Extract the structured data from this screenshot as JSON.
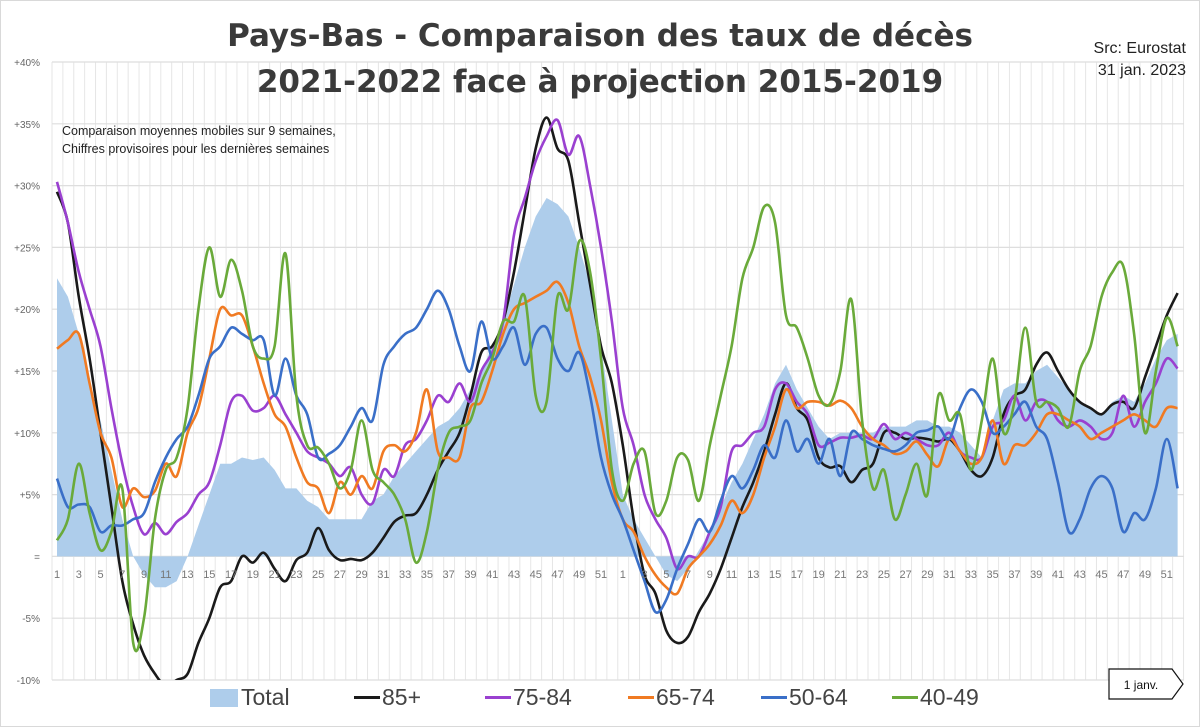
{
  "chart_data": {
    "type": "area+line",
    "title": [
      "Pays-Bas - Comparaison des taux de décès",
      "2021-2022 face à projection 2015-2019"
    ],
    "source": [
      "Src: Eurostat",
      "31 jan. 2023"
    ],
    "annotation": [
      "Comparaison moyennes mobiles sur 9 semaines,",
      "Chiffres provisoires pour les dernières semaines"
    ],
    "marker_label": "1 janv.",
    "ylim": [
      -10,
      40
    ],
    "yticks": [
      {
        "v": 40,
        "label": "+40%"
      },
      {
        "v": 35,
        "label": "+35%"
      },
      {
        "v": 30,
        "label": "+30%"
      },
      {
        "v": 25,
        "label": "+25%"
      },
      {
        "v": 20,
        "label": "+20%"
      },
      {
        "v": 15,
        "label": "+15%"
      },
      {
        "v": 10,
        "label": "+10%"
      },
      {
        "v": 5,
        "label": "+5%"
      },
      {
        "v": 0,
        "label": "="
      },
      {
        "v": -5,
        "label": "-5%"
      },
      {
        "v": -10,
        "label": "-10%"
      }
    ],
    "grid": true,
    "legend_position": "bottom",
    "x_weeks": [
      1,
      2,
      3,
      4,
      5,
      6,
      7,
      8,
      9,
      10,
      11,
      12,
      13,
      14,
      15,
      16,
      17,
      18,
      19,
      20,
      21,
      22,
      23,
      24,
      25,
      26,
      27,
      28,
      29,
      30,
      31,
      32,
      33,
      34,
      35,
      36,
      37,
      38,
      39,
      40,
      41,
      42,
      43,
      44,
      45,
      46,
      47,
      48,
      49,
      50,
      51,
      52,
      1,
      2,
      3,
      4,
      5,
      6,
      7,
      8,
      9,
      10,
      11,
      12,
      13,
      14,
      15,
      16,
      17,
      18,
      19,
      20,
      21,
      22,
      23,
      24,
      25,
      26,
      27,
      28,
      29,
      30,
      31,
      32,
      33,
      34,
      35,
      36,
      37,
      38,
      39,
      40,
      41,
      42,
      43,
      44,
      45,
      46,
      47,
      48,
      49,
      50,
      51,
      52
    ],
    "series": [
      {
        "name": "Total",
        "kind": "area",
        "color": "#aecdeb",
        "values": [
          22.5,
          21,
          18,
          14,
          11,
          7,
          3,
          0,
          -1.5,
          -2.5,
          -2.5,
          -2,
          0,
          2.5,
          5,
          7.5,
          7.5,
          8,
          7.8,
          8,
          7,
          5.5,
          5.5,
          4.5,
          4,
          3,
          3,
          3,
          3,
          4.5,
          5,
          6.5,
          7.5,
          8.5,
          9.5,
          10.5,
          11,
          12,
          13.5,
          15,
          17,
          19,
          22,
          25,
          27.5,
          29,
          28.5,
          27.5,
          25,
          22,
          17,
          11,
          5,
          3,
          1.5,
          0,
          -1.5,
          -2,
          -1,
          0.5,
          2,
          4,
          6,
          7.5,
          9.5,
          11.5,
          14,
          15.5,
          13.5,
          12,
          10.5,
          9.5,
          10,
          10,
          10,
          10,
          10.5,
          10.5,
          10.5,
          11,
          11,
          10.5,
          10.5,
          10,
          9,
          8,
          11,
          13.5,
          14,
          14,
          15,
          15.5,
          14.5,
          13.5,
          12.5,
          12,
          11.5,
          12.5,
          13,
          12.5,
          14,
          16,
          17.5,
          18
        ]
      },
      {
        "name": "85+",
        "kind": "line",
        "color": "#1a1a1a",
        "values": [
          29.5,
          27,
          21,
          16,
          10,
          4,
          -2,
          -5.5,
          -8,
          -9.5,
          -10.5,
          -10,
          -9.5,
          -7,
          -5,
          -2.5,
          -2,
          0,
          -0.5,
          0.3,
          -1,
          -2,
          -0.3,
          0.3,
          2.3,
          0.5,
          -0.3,
          -0.2,
          -0.3,
          0.3,
          1.5,
          2.8,
          3.3,
          3.5,
          5,
          7,
          8.5,
          10,
          13,
          16.5,
          17,
          19,
          23,
          28,
          33,
          35.5,
          33,
          32,
          27,
          22,
          17,
          14,
          9,
          3,
          -1.5,
          -3,
          -6,
          -7,
          -6.5,
          -4.5,
          -3,
          -1,
          1.5,
          4,
          6,
          8.5,
          11.5,
          14,
          12,
          11,
          8,
          7.2,
          7.3,
          6,
          7,
          7.5,
          10,
          10,
          9.5,
          9.6,
          9.5,
          9.3,
          9.5,
          8.5,
          7,
          6.5,
          8,
          11.5,
          13,
          13.5,
          15.5,
          16.5,
          15,
          13.5,
          12.5,
          12,
          11.5,
          12.3,
          12.5,
          12,
          14.5,
          17,
          19.5,
          21.3
        ]
      },
      {
        "name": "75-84",
        "kind": "line",
        "color": "#9a40d0",
        "values": [
          30.3,
          27,
          23,
          20,
          17,
          12,
          7.5,
          4,
          1.8,
          2.7,
          1.8,
          2.8,
          3.5,
          5,
          6,
          9,
          12.5,
          13,
          11.8,
          12,
          13,
          11.5,
          10,
          8.5,
          8,
          7.5,
          6.5,
          7.2,
          5,
          4.3,
          7,
          6.5,
          9,
          9.5,
          11,
          13,
          12.5,
          14,
          12.5,
          15,
          16.5,
          19,
          26,
          29,
          32,
          34,
          35.3,
          32.5,
          34,
          30,
          25,
          19,
          12,
          9,
          5,
          3,
          1.5,
          -1,
          0,
          0,
          2,
          4,
          8.5,
          9,
          10,
          10.5,
          13.5,
          14,
          12.5,
          11.5,
          9,
          9.2,
          9.6,
          9.6,
          9.8,
          9.5,
          10.7,
          9.5,
          10,
          9.5,
          9,
          9,
          10,
          8.5,
          8,
          8,
          10.5,
          11,
          13,
          11,
          12.5,
          12.5,
          11,
          10.5,
          11,
          10.5,
          9.5,
          10,
          13,
          10.5,
          12.5,
          14,
          16,
          15.2
        ]
      },
      {
        "name": "65-74",
        "kind": "line",
        "color": "#f07a22",
        "values": [
          16.8,
          17.5,
          18,
          14,
          10,
          8,
          4,
          5.5,
          4.8,
          5.3,
          7.5,
          6.5,
          10,
          12,
          16,
          20,
          19.5,
          19.5,
          17,
          14,
          11.5,
          10.5,
          8,
          6,
          5.5,
          3.5,
          6,
          5,
          6.5,
          5.5,
          8.5,
          9,
          8.5,
          10,
          13.5,
          8.5,
          8,
          8,
          12,
          12.5,
          15,
          18,
          20,
          20.5,
          21,
          21.5,
          22.2,
          20.5,
          17,
          14.5,
          11,
          6,
          3,
          2,
          0,
          -1.5,
          -2.5,
          -3,
          -1,
          0,
          1,
          2.5,
          4.5,
          3.5,
          5,
          8,
          10.5,
          13.5,
          12,
          12.5,
          12.5,
          12.2,
          12.6,
          12,
          10.5,
          9.5,
          9,
          8.3,
          8.5,
          9.3,
          8.2,
          7.3,
          9.5,
          8.5,
          7.5,
          8,
          11,
          7.5,
          9,
          9,
          10,
          11.5,
          11.5,
          11,
          10.5,
          9.5,
          10,
          10.5,
          11,
          11.5,
          11,
          10.5,
          12,
          12
        ]
      },
      {
        "name": "50-64",
        "kind": "line",
        "color": "#3a6fc8",
        "values": [
          6.3,
          4,
          4.2,
          4,
          2,
          2.5,
          2.5,
          3,
          3.5,
          6,
          8,
          9.5,
          10.5,
          13,
          16,
          17,
          18.5,
          18,
          17.5,
          17.5,
          13,
          16,
          13,
          11.5,
          8,
          8.3,
          9,
          10.5,
          12,
          11,
          15.5,
          17,
          18,
          18.5,
          20,
          21.5,
          20,
          17,
          15,
          19,
          16,
          17,
          18.5,
          15.5,
          18,
          18.5,
          16,
          15,
          16.5,
          13,
          8,
          5,
          3,
          0.5,
          -2,
          -4.5,
          -3.5,
          -1,
          1,
          3,
          2,
          4.5,
          6.5,
          5.5,
          7,
          9,
          8,
          11,
          8.5,
          9.5,
          7.5,
          9.5,
          6.5,
          10,
          9.5,
          9,
          8.7,
          8.5,
          9,
          10,
          10.2,
          10.5,
          9.5,
          12,
          13.5,
          12.5,
          10,
          10.5,
          11.5,
          12.5,
          10.5,
          9.5,
          6,
          2,
          3,
          5.5,
          6.5,
          5.5,
          2,
          3.5,
          3,
          5.5,
          9.5,
          5.5
        ]
      },
      {
        "name": "40-49",
        "kind": "line",
        "color": "#6aaa3a",
        "values": [
          1.3,
          3,
          7.5,
          3.5,
          0.5,
          2,
          5.5,
          -7,
          -5,
          3,
          7,
          8,
          12,
          20,
          25,
          21,
          24,
          21.5,
          17,
          16,
          17,
          24.5,
          13,
          9,
          8.8,
          7.5,
          5.5,
          7,
          11,
          7,
          6,
          5,
          3,
          -0.5,
          2,
          7,
          10,
          10.5,
          11,
          14,
          16,
          19,
          19,
          21,
          13,
          12.5,
          21,
          20,
          25.5,
          23,
          16,
          7,
          4.5,
          7.5,
          8.5,
          3.5,
          4.5,
          8,
          7.8,
          4.5,
          9,
          13,
          17,
          22.5,
          25,
          28.3,
          27,
          19.5,
          18.5,
          16,
          13,
          12.3,
          15,
          20.8,
          11,
          5.5,
          7,
          3,
          5,
          7.5,
          5,
          13,
          11,
          11.5,
          7,
          11,
          16,
          10,
          12.5,
          18.5,
          12.5,
          12.5,
          12,
          10.5,
          15,
          17,
          21,
          23,
          23.5,
          18,
          10,
          15,
          19.3,
          17
        ]
      }
    ]
  }
}
